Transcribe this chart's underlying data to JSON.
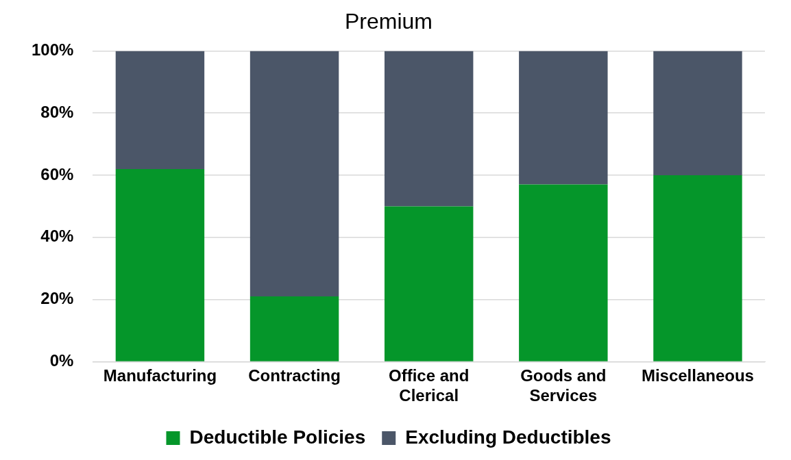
{
  "chart_data": {
    "type": "bar",
    "title": "Premium",
    "categories": [
      "Manufacturing",
      "Contracting",
      "Office and Clerical",
      "Goods and Services",
      "Miscellaneous"
    ],
    "series": [
      {
        "name": "Deductible Policies",
        "color": "#05962a",
        "values": [
          62,
          21,
          50,
          57,
          60
        ]
      },
      {
        "name": "Excluding Deductibles",
        "color": "#4b5668",
        "values": [
          38,
          79,
          50,
          43,
          40
        ]
      }
    ],
    "stacked": true,
    "ylim": [
      0,
      100
    ],
    "yticks": [
      {
        "value": 0,
        "label": "0%"
      },
      {
        "value": 20,
        "label": "20%"
      },
      {
        "value": 40,
        "label": "40%"
      },
      {
        "value": 60,
        "label": "60%"
      },
      {
        "value": 80,
        "label": "80%"
      },
      {
        "value": 100,
        "label": "100%"
      }
    ],
    "grid": "y",
    "legend": "bottom"
  }
}
